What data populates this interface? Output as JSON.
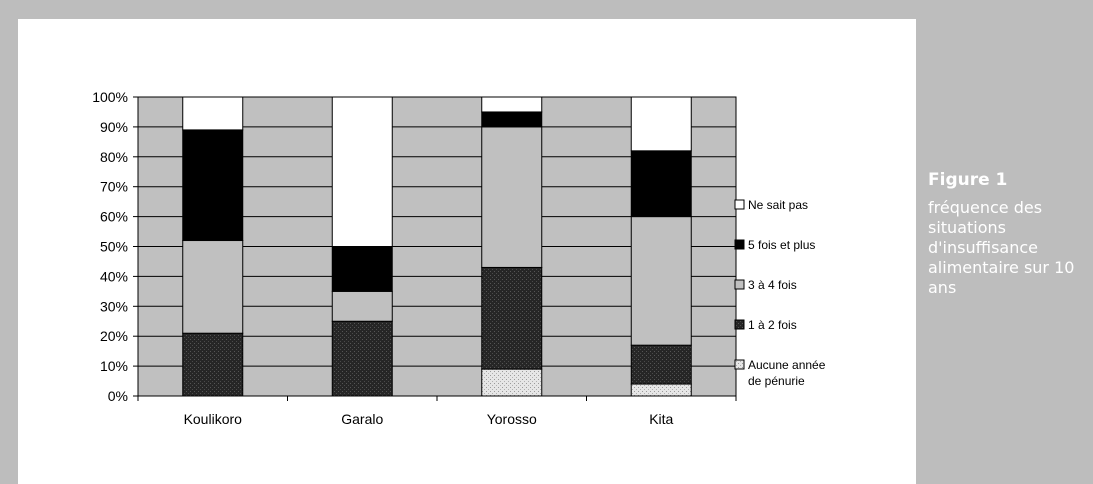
{
  "figure": {
    "title": "Figure 1",
    "caption": "fréquence des situations d'insuffisance alimentaire sur 10 ans"
  },
  "colors": {
    "background": "#bdbdbd",
    "plot_area": "#c0c0c0",
    "panel": "#ffffff",
    "caption_text": "#ffffff"
  },
  "chart_data": {
    "type": "bar",
    "stacked": true,
    "percent": true,
    "categories": [
      "Koulikoro",
      "Garalo",
      "Yorosso",
      "Kita"
    ],
    "series": [
      {
        "name": "Aucune année de pénurie",
        "values": [
          0,
          0,
          9,
          4
        ],
        "color": "#dcdcdc",
        "pattern": "dots-light"
      },
      {
        "name": "1 à 2 fois",
        "values": [
          21,
          25,
          34,
          13
        ],
        "color": "#262626",
        "pattern": "dots-dark"
      },
      {
        "name": "3 à 4 fois",
        "values": [
          31,
          10,
          47,
          43
        ],
        "color": "#c0c0c0",
        "pattern": "none"
      },
      {
        "name": "5 fois et plus",
        "values": [
          37,
          15,
          5,
          22
        ],
        "color": "#000000",
        "pattern": "none"
      },
      {
        "name": "Ne sait pas",
        "values": [
          11,
          50,
          5,
          18
        ],
        "color": "#ffffff",
        "pattern": "none"
      }
    ],
    "y_ticks": [
      "0%",
      "10%",
      "20%",
      "30%",
      "40%",
      "50%",
      "60%",
      "70%",
      "80%",
      "90%",
      "100%"
    ],
    "ylim": [
      0,
      100
    ],
    "grid": true,
    "legend_position": "right",
    "legend_order": [
      "Ne sait pas",
      "5 fois et plus",
      "3 à 4 fois",
      "1 à 2 fois",
      "Aucune année de pénurie"
    ],
    "xlabel": "",
    "ylabel": ""
  }
}
